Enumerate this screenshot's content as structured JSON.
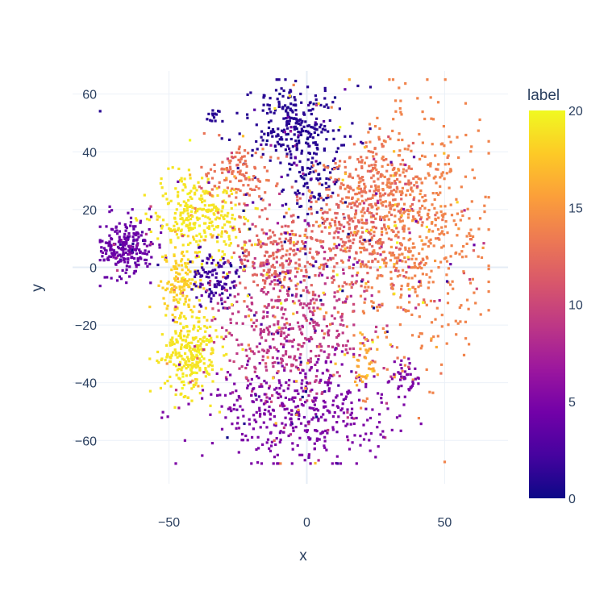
{
  "chart_data": {
    "type": "scatter",
    "title": "",
    "xlabel": "x",
    "ylabel": "y",
    "xlim": [
      -85,
      73
    ],
    "ylim": [
      -75,
      68
    ],
    "grid": true,
    "x_ticks": [
      -50,
      0,
      50
    ],
    "y_ticks": [
      -60,
      -40,
      -20,
      0,
      20,
      40,
      60
    ],
    "x_tick_labels": [
      "−50",
      "0",
      "50"
    ],
    "y_tick_labels": [
      "−60",
      "−40",
      "−20",
      "0",
      "20",
      "40",
      "60"
    ],
    "colorbar": {
      "title": "label",
      "min": 0,
      "max": 20,
      "ticks": [
        0,
        5,
        10,
        15,
        20
      ],
      "tick_labels": [
        "0",
        "5",
        "10",
        "15",
        "20"
      ],
      "colorscale": "Plasma"
    },
    "clusters": [
      {
        "label": 4,
        "center": [
          -65,
          7
        ],
        "spread": [
          5,
          5
        ],
        "n": 240
      },
      {
        "label": 1,
        "center": [
          -33,
          52
        ],
        "spread": [
          1.5,
          1.5
        ],
        "n": 15
      },
      {
        "label": 1,
        "center": [
          -4,
          49
        ],
        "spread": [
          9,
          7
        ],
        "n": 280
      },
      {
        "label": 1,
        "center": [
          2,
          28
        ],
        "spread": [
          5,
          8
        ],
        "n": 90
      },
      {
        "label": 19,
        "center": [
          -38,
          18
        ],
        "spread": [
          9,
          8
        ],
        "n": 300
      },
      {
        "label": 18,
        "center": [
          -45,
          -5
        ],
        "spread": [
          3.5,
          6
        ],
        "n": 130
      },
      {
        "label": 19,
        "center": [
          -42,
          -30
        ],
        "spread": [
          5,
          7
        ],
        "n": 280
      },
      {
        "label": 2,
        "center": [
          -33,
          -4
        ],
        "spread": [
          5,
          5
        ],
        "n": 110
      },
      {
        "label": 13,
        "center": [
          -25,
          32
        ],
        "spread": [
          6,
          5
        ],
        "n": 120
      },
      {
        "label": 12,
        "center": [
          -10,
          5
        ],
        "spread": [
          8,
          7
        ],
        "n": 220
      },
      {
        "label": 9,
        "center": [
          -5,
          -22
        ],
        "spread": [
          14,
          12
        ],
        "n": 420
      },
      {
        "label": 12,
        "center": [
          18,
          10
        ],
        "spread": [
          10,
          9
        ],
        "n": 220
      },
      {
        "label": 14,
        "center": [
          38,
          12
        ],
        "spread": [
          13,
          22
        ],
        "n": 600
      },
      {
        "label": 13,
        "center": [
          25,
          28
        ],
        "spread": [
          9,
          8
        ],
        "n": 200
      },
      {
        "label": 5,
        "center": [
          -3,
          -50
        ],
        "spread": [
          16,
          9
        ],
        "n": 420
      },
      {
        "label": 5,
        "center": [
          35,
          -38
        ],
        "spread": [
          3,
          4
        ],
        "n": 40
      },
      {
        "label": 16,
        "center": [
          22,
          -32
        ],
        "spread": [
          2.5,
          5
        ],
        "n": 40
      },
      {
        "label": 7,
        "center": [
          5,
          0
        ],
        "spread": [
          25,
          25
        ],
        "n": 250
      }
    ]
  }
}
